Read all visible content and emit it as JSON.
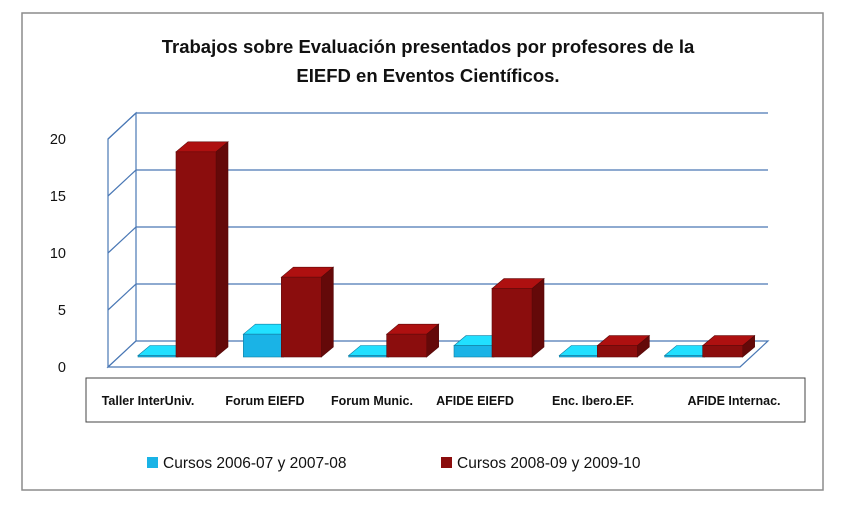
{
  "chart_data": {
    "type": "bar",
    "title": [
      "Trabajos sobre Evaluación presentados por profesores de la",
      "EIEFD en Eventos  Científicos."
    ],
    "categories": [
      "Taller InterUniv.",
      "Forum EIEFD",
      "Forum Munic.",
      "AFIDE EIEFD",
      "Enc. Ibero.EF.",
      "AFIDE  Internac."
    ],
    "series": [
      {
        "name": "Cursos  2006-07  y  2007-08",
        "values": [
          0,
          2,
          0,
          1,
          0,
          0
        ],
        "color": "#1ab3e6"
      },
      {
        "name": "Cursos  2008-09  y  2009-10",
        "values": [
          18,
          7,
          2,
          6,
          1,
          1
        ],
        "color": "#8b0d0d"
      }
    ],
    "yticks": [
      0,
      5,
      10,
      15,
      20
    ],
    "ylim": [
      0,
      20
    ],
    "grid": true,
    "legend_position": "bottom",
    "projection": "3d"
  }
}
